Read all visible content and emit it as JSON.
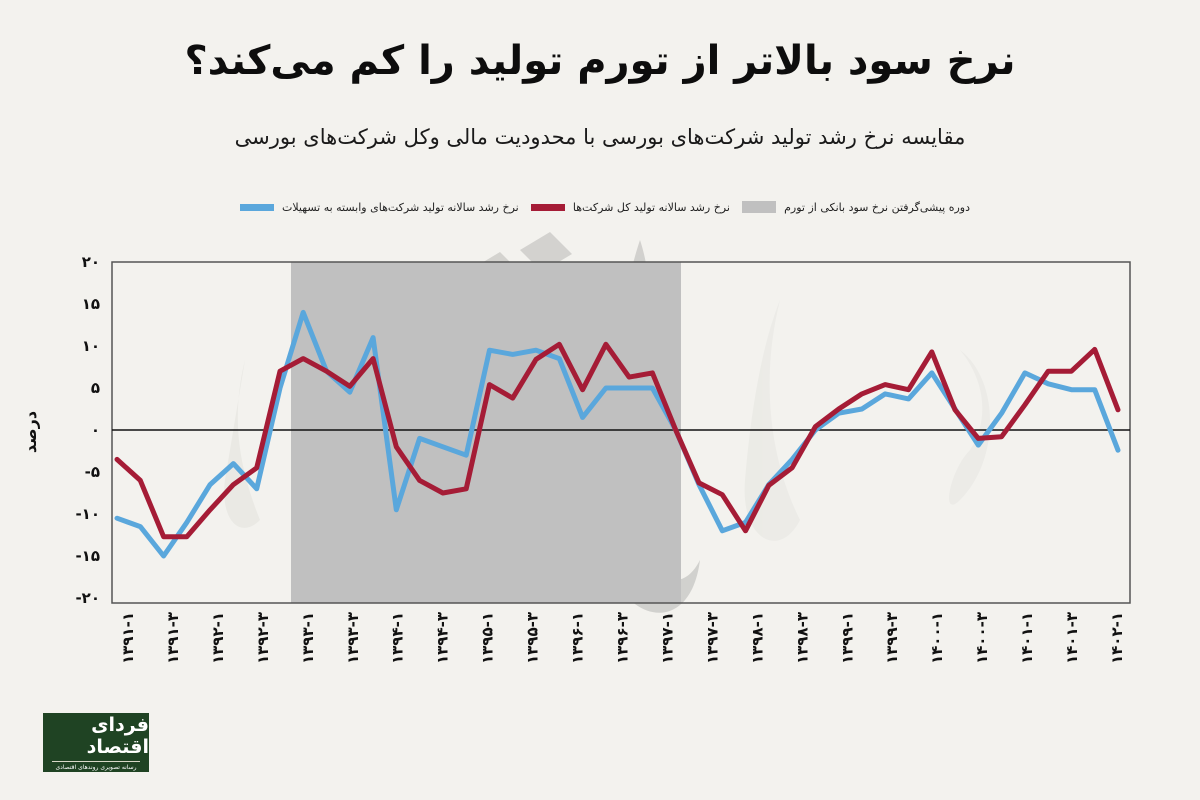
{
  "header": {
    "title": "نرخ سود بالاتر از تورم تولید را کم می‌کند؟",
    "subtitle": "مقایسه نرخ رشد تولید شرکت‌های بورسی با محدودیت مالی وکل شرکت‌های بورسی"
  },
  "legend": [
    {
      "label": "نرخ رشد سالانه تولید شرکت‌های وابسته به تسهیلات",
      "color": "#5aa7dc"
    },
    {
      "label": "نرخ رشد سالانه تولید کل شرکت‌ها",
      "color": "#a51c36"
    },
    {
      "label": "دوره پیشی‌گرفتن نرخ سود بانکی از تورم",
      "color": "#c0c0c0"
    }
  ],
  "logo": {
    "name": "فردای اقتصاد",
    "tagline": "رسانه تصویری روندهای اقتصادی"
  },
  "chart_data": {
    "type": "line",
    "title": "نرخ سود بالاتر از تورم تولید را کم می‌کند؟",
    "subtitle": "مقایسه نرخ رشد تولید شرکت‌های بورسی با محدودیت مالی وکل شرکت‌های بورسی",
    "xlabel": "",
    "ylabel": "درصد",
    "ylim": [
      -20,
      20
    ],
    "yticks": [
      20,
      15,
      10,
      5,
      0,
      -5,
      -10,
      -15,
      -20
    ],
    "ytick_labels": [
      "۲۰",
      "۱۵",
      "۱۰",
      "۵",
      "۰",
      "-۵",
      "-۱۰",
      "-۱۵",
      "-۲۰"
    ],
    "xtick_labels": [
      "۱۳۹۱-۱",
      "۱۳۹۱-۳",
      "۱۳۹۲-۱",
      "۱۳۹۲-۳",
      "۱۳۹۳-۱",
      "۱۳۹۳-۳",
      "۱۳۹۴-۱",
      "۱۳۹۴-۳",
      "۱۳۹۵-۱",
      "۱۳۹۵-۳",
      "۱۳۹۶-۱",
      "۱۳۹۶-۳",
      "۱۳۹۷-۱",
      "۱۳۹۷-۳",
      "۱۳۹۸-۱",
      "۱۳۹۸-۳",
      "۱۳۹۹-۱",
      "۱۳۹۹-۳",
      "۱۴۰۰-۱",
      "۱۴۰۰-۳",
      "۱۴۰۱-۱",
      "۱۴۰۱-۳",
      "۱۴۰۲-۱"
    ],
    "grid": false,
    "legend_position": "top",
    "shaded_region": {
      "label": "دوره پیشی‌گرفتن نرخ سود بانکی از تورم",
      "from_index": 8,
      "to_index": 25,
      "color": "#c0c0c0"
    },
    "series": [
      {
        "name": "نرخ رشد سالانه تولید شرکت‌های وابسته به تسهیلات",
        "color": "#5aa7dc",
        "values": [
          -10.5,
          -11.5,
          -15,
          -11,
          -6.5,
          -4,
          -7,
          5,
          14,
          7,
          4.5,
          11,
          -9.5,
          -1,
          -2,
          -3,
          9.5,
          9,
          9.5,
          8.5,
          1.5,
          5,
          5,
          5,
          0,
          -6.5,
          -12,
          -11,
          -6.5,
          -3.5,
          0,
          2,
          2.5,
          4.3,
          3.7,
          6.8,
          2.5,
          -1.8,
          2,
          6.8,
          5.5,
          4.8,
          4.8,
          -2.4
        ]
      },
      {
        "name": "نرخ رشد سالانه تولید کل شرکت‌ها",
        "color": "#a51c36",
        "values": [
          -3.5,
          -6,
          -12.7,
          -12.7,
          -9.5,
          -6.5,
          -4.5,
          7,
          8.5,
          7,
          5.2,
          8.5,
          -2,
          -6,
          -7.5,
          -7,
          5.4,
          3.8,
          8.4,
          10.2,
          4.8,
          10.2,
          6.3,
          6.8,
          0,
          -6.3,
          -7.7,
          -12,
          -6.6,
          -4.5,
          0.4,
          2.5,
          4.3,
          5.4,
          4.8,
          9.3,
          2.4,
          -1,
          -0.8,
          3,
          7,
          7,
          9.6,
          2.4
        ]
      }
    ]
  }
}
